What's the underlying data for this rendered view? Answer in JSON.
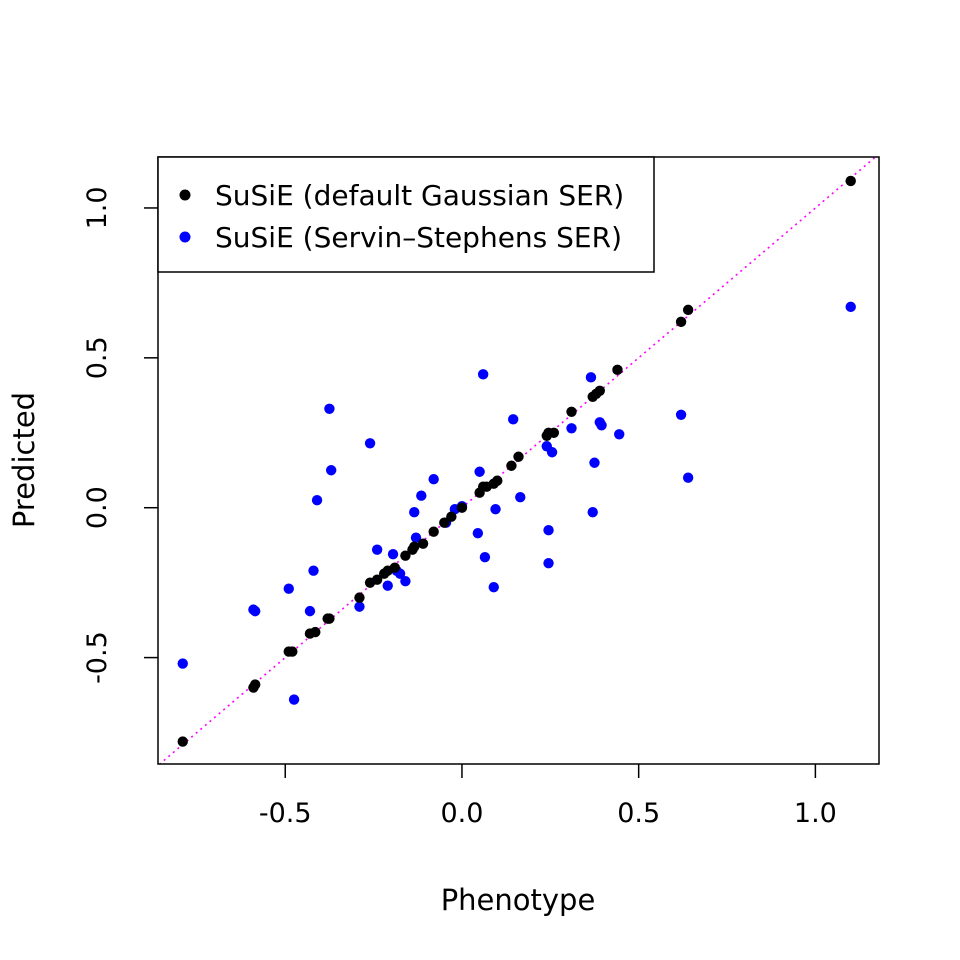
{
  "chart_data": {
    "type": "scatter",
    "title": "",
    "xlabel": "Phenotype",
    "ylabel": "Predicted",
    "xlim": [
      -0.86,
      1.18
    ],
    "ylim": [
      -0.855,
      1.17
    ],
    "x_ticks": [
      {
        "value": -0.5,
        "label": "-0.5"
      },
      {
        "value": 0.0,
        "label": "0.0"
      },
      {
        "value": 0.5,
        "label": "0.5"
      },
      {
        "value": 1.0,
        "label": "1.0"
      }
    ],
    "y_ticks": [
      {
        "value": -0.5,
        "label": "-0.5"
      },
      {
        "value": 0.0,
        "label": "0.0"
      },
      {
        "value": 0.5,
        "label": "0.5"
      },
      {
        "value": 1.0,
        "label": "1.0"
      }
    ],
    "grid": false,
    "legend_position": "top-left",
    "reference_line": {
      "type": "identity",
      "color": "#ff00ff",
      "style": "dotted"
    },
    "series": [
      {
        "name": "SuSiE (default Gaussian SER)",
        "color": "#000000",
        "points": [
          [
            -0.79,
            -0.78
          ],
          [
            -0.59,
            -0.6
          ],
          [
            -0.585,
            -0.59
          ],
          [
            -0.49,
            -0.48
          ],
          [
            -0.48,
            -0.48
          ],
          [
            -0.43,
            -0.42
          ],
          [
            -0.415,
            -0.415
          ],
          [
            -0.38,
            -0.37
          ],
          [
            -0.375,
            -0.37
          ],
          [
            -0.29,
            -0.3
          ],
          [
            -0.26,
            -0.25
          ],
          [
            -0.24,
            -0.24
          ],
          [
            -0.22,
            -0.22
          ],
          [
            -0.21,
            -0.21
          ],
          [
            -0.19,
            -0.2
          ],
          [
            -0.16,
            -0.16
          ],
          [
            -0.14,
            -0.14
          ],
          [
            -0.135,
            -0.13
          ],
          [
            -0.11,
            -0.12
          ],
          [
            -0.08,
            -0.08
          ],
          [
            -0.05,
            -0.05
          ],
          [
            -0.03,
            -0.03
          ],
          [
            0.0,
            0.0
          ],
          [
            0.05,
            0.05
          ],
          [
            0.06,
            0.07
          ],
          [
            0.07,
            0.07
          ],
          [
            0.09,
            0.08
          ],
          [
            0.1,
            0.09
          ],
          [
            0.14,
            0.14
          ],
          [
            0.16,
            0.17
          ],
          [
            0.24,
            0.24
          ],
          [
            0.245,
            0.25
          ],
          [
            0.26,
            0.25
          ],
          [
            0.31,
            0.32
          ],
          [
            0.37,
            0.37
          ],
          [
            0.38,
            0.38
          ],
          [
            0.39,
            0.39
          ],
          [
            0.44,
            0.46
          ],
          [
            0.62,
            0.62
          ],
          [
            0.64,
            0.66
          ],
          [
            1.1,
            1.09
          ]
        ]
      },
      {
        "name": "SuSiE (Servin–Stephens SER)",
        "color": "#0000ff",
        "points": [
          [
            -0.79,
            -0.52
          ],
          [
            -0.59,
            -0.34
          ],
          [
            -0.585,
            -0.345
          ],
          [
            -0.49,
            -0.27
          ],
          [
            -0.475,
            -0.64
          ],
          [
            -0.43,
            -0.345
          ],
          [
            -0.42,
            -0.21
          ],
          [
            -0.41,
            0.025
          ],
          [
            -0.375,
            0.33
          ],
          [
            -0.37,
            0.125
          ],
          [
            -0.29,
            -0.33
          ],
          [
            -0.26,
            0.215
          ],
          [
            -0.24,
            -0.14
          ],
          [
            -0.21,
            -0.26
          ],
          [
            -0.195,
            -0.155
          ],
          [
            -0.185,
            -0.21
          ],
          [
            -0.175,
            -0.22
          ],
          [
            -0.16,
            -0.245
          ],
          [
            -0.135,
            -0.015
          ],
          [
            -0.13,
            -0.1
          ],
          [
            -0.115,
            0.04
          ],
          [
            -0.08,
            0.095
          ],
          [
            -0.045,
            -0.05
          ],
          [
            -0.02,
            -0.005
          ],
          [
            0.0,
            0.005
          ],
          [
            0.045,
            -0.085
          ],
          [
            0.05,
            0.12
          ],
          [
            0.06,
            0.445
          ],
          [
            0.065,
            -0.165
          ],
          [
            0.09,
            -0.265
          ],
          [
            0.095,
            -0.005
          ],
          [
            0.145,
            0.295
          ],
          [
            0.165,
            0.035
          ],
          [
            0.24,
            0.205
          ],
          [
            0.245,
            -0.075
          ],
          [
            0.245,
            -0.185
          ],
          [
            0.255,
            0.185
          ],
          [
            0.31,
            0.265
          ],
          [
            0.365,
            0.435
          ],
          [
            0.37,
            -0.015
          ],
          [
            0.375,
            0.15
          ],
          [
            0.39,
            0.285
          ],
          [
            0.395,
            0.275
          ],
          [
            0.445,
            0.245
          ],
          [
            0.62,
            0.31
          ],
          [
            0.64,
            0.1
          ],
          [
            1.1,
            0.67
          ]
        ]
      }
    ]
  }
}
